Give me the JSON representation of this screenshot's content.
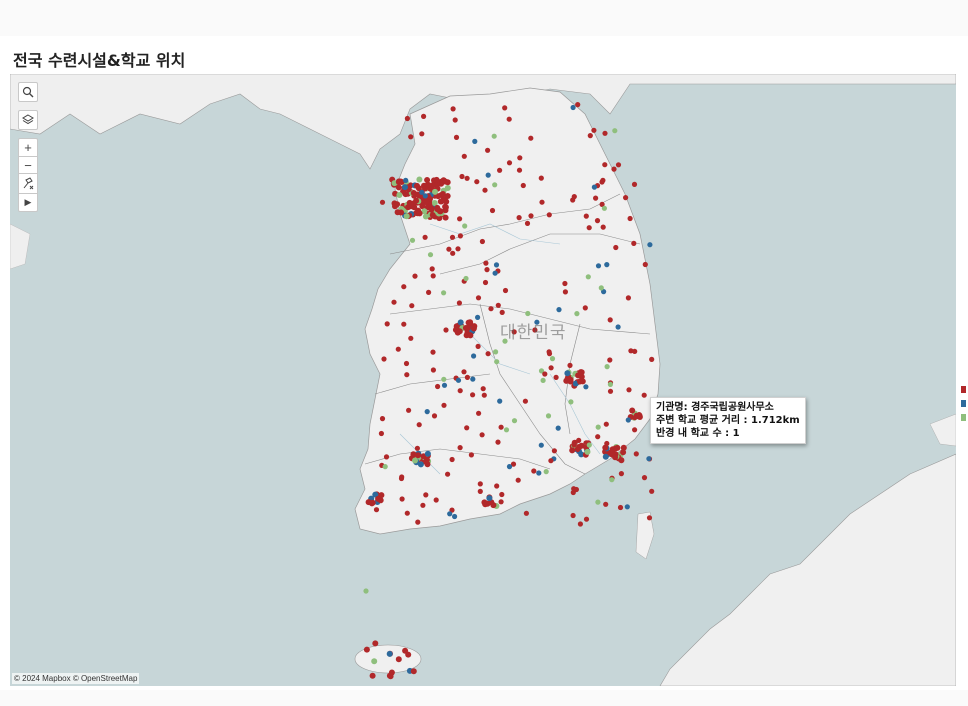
{
  "title": "전국 수련시설&학교 위치",
  "map": {
    "country_label": "대한민국",
    "attribution": "© 2024 Mapbox © OpenStreetMap",
    "controls": [
      "search-icon",
      "layers-icon",
      "zoom-in-icon",
      "zoom-out-icon",
      "pin-clear-icon",
      "play-icon"
    ],
    "control_glyphs": {
      "zoom_in": "+",
      "zoom_out": "−",
      "play": "▶"
    },
    "colors": {
      "water": "#c7d6d8",
      "land": "#f0f0f0",
      "facility_dot": "#b1282a",
      "blue_dot": "#2d6a9c",
      "green_dot": "#8fbf7d"
    }
  },
  "tooltip": {
    "line1": "기관명: 경주국립공원사무소",
    "line2": "주변 학교 평균 거리 : 1.712km",
    "line3": "반경 내 학교 수 : 1"
  }
}
